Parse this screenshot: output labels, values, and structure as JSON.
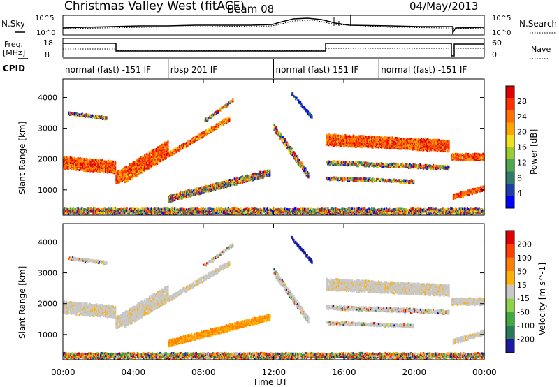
{
  "header": {
    "station": "Christmas Valley West (fitACF)",
    "beam": "Beam 08",
    "date": "04/May/2013"
  },
  "top_panels": {
    "nsky_label": "N.Sky",
    "nsearch_label": "N.Search",
    "noise_ticks": [
      "10^5",
      "10^0"
    ],
    "freq_label": [
      "Freq.",
      "[MHz]"
    ],
    "freq_ticks": [
      "18",
      "8"
    ],
    "nave_label": "Nave",
    "nave_ticks": [
      "60",
      "0"
    ],
    "cpid_label": "CPID",
    "cpid_segments": [
      {
        "label": "normal (fast) -151 IF",
        "start_h": 0,
        "end_h": 6
      },
      {
        "label": "rbsp 201 IF",
        "start_h": 6,
        "end_h": 12
      },
      {
        "label": "normal (fast) 151 IF",
        "start_h": 12,
        "end_h": 18
      },
      {
        "label": "normal (fast) -151 IF",
        "start_h": 18,
        "end_h": 24
      }
    ]
  },
  "chart_data": [
    {
      "type": "heatmap",
      "name": "power",
      "ylabel": "Slant Range [km]",
      "ylim": [
        180,
        4600
      ],
      "yticks": [
        1000,
        2000,
        3000,
        4000
      ],
      "colorbar_label": "Power [dB]",
      "colorbar_ticks": [
        "28",
        "24",
        "20",
        "16",
        "12",
        "8",
        "4"
      ],
      "colors": [
        "#0000ff",
        "#1e3ea8",
        "#2f7a6a",
        "#4fa64f",
        "#9acd32",
        "#f0e020",
        "#ffa500",
        "#ff7000",
        "#ff3000",
        "#e00000"
      ]
    },
    {
      "type": "heatmap",
      "name": "velocity",
      "ylabel": "Slant Range [km]",
      "ylim": [
        180,
        4600
      ],
      "yticks": [
        1000,
        2000,
        3000,
        4000
      ],
      "xlabel": "Time UT",
      "xticks": [
        "00:00",
        "04:00",
        "08:00",
        "12:00",
        "16:00",
        "20:00",
        "00:00"
      ],
      "xlim_hours": [
        0,
        24
      ],
      "colorbar_label": "Velocity [m s^-1]",
      "colorbar_ticks": [
        "200",
        "100",
        "50",
        "15",
        "-15",
        "-50",
        "-100",
        "-200"
      ],
      "colors": [
        "#1a1aa0",
        "#2a7a5a",
        "#3faa3f",
        "#8cd24a",
        "#c8c8c8",
        "#ffb000",
        "#ff8000",
        "#ff4000",
        "#e00000"
      ]
    }
  ]
}
